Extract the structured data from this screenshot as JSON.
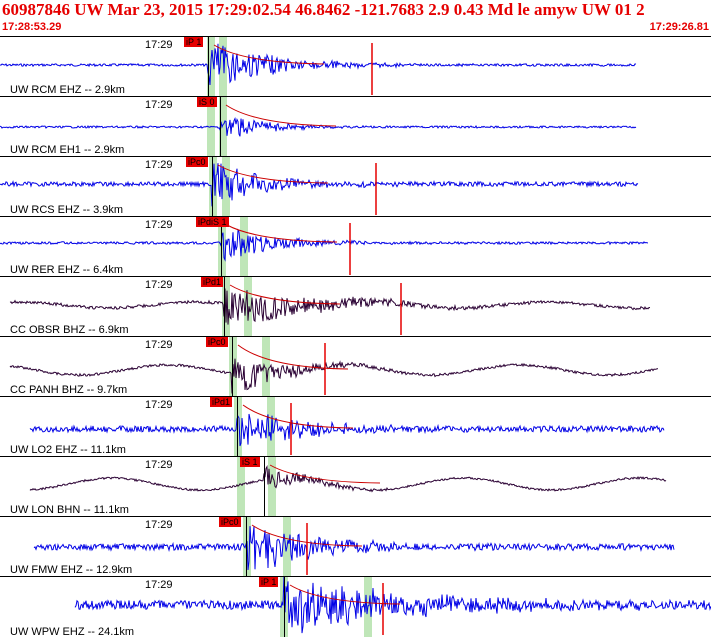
{
  "header": {
    "title": "60987846 UW Mar 23, 2015 17:29:02.54   46.8462 -121.7683  2.9 0.43 Md le amyw UW 01   2",
    "start_time": "17:28:53.29",
    "end_time": "17:29:26.81",
    "title_color": "#e60000"
  },
  "colors": {
    "trace_blue": "#0000e6",
    "trace_dark": "#2a0033",
    "pick_red": "#e60000",
    "arrival_green": "#bfe6b8",
    "decay_curve": "#cc0000"
  },
  "traces": [
    {
      "time": "17:29",
      "label": "UW RCM EHZ -- 2.9km",
      "pick": "iP 1",
      "color": "blue"
    },
    {
      "time": "17:29",
      "label": "UW RCM EH1 -- 2.9km",
      "pick": "iS 0",
      "color": "blue"
    },
    {
      "time": "17:29",
      "label": "UW RCS EHZ -- 3.9km",
      "pick": "iPc0",
      "color": "blue"
    },
    {
      "time": "17:29",
      "label": "UW RER EHZ -- 6.4km",
      "pick": "iPdiS 1",
      "color": "blue"
    },
    {
      "time": "17:29",
      "label": "CC OBSR BHZ -- 6.9km",
      "pick": "iPd1",
      "color": "dark"
    },
    {
      "time": "17:29",
      "label": "CC PANH BHZ -- 9.7km",
      "pick": "iPc0",
      "color": "dark"
    },
    {
      "time": "17:29",
      "label": "UW LO2 EHZ -- 11.1km",
      "pick": "iPd1",
      "color": "blue"
    },
    {
      "time": "17:29",
      "label": "UW LON BHN -- 11.1km",
      "pick": "iS 1",
      "color": "dark"
    },
    {
      "time": "17:29",
      "label": "UW FMW EHZ -- 12.9km",
      "pick": "iPc0",
      "color": "blue"
    },
    {
      "time": "17:29",
      "label": "UW WPW EHZ -- 24.1km",
      "pick": "iP 1",
      "color": "blue"
    }
  ]
}
